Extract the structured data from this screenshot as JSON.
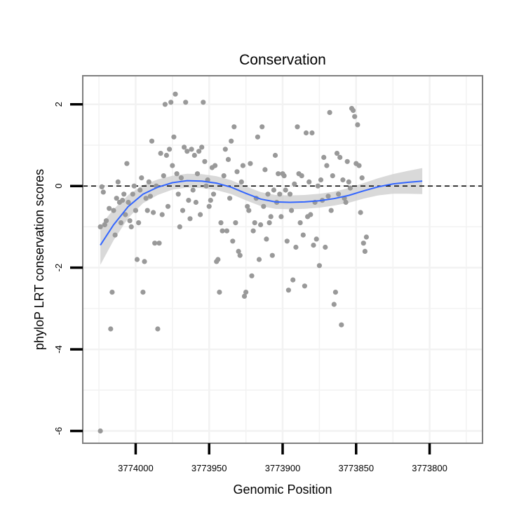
{
  "chart_data": {
    "type": "scatter",
    "title": "Conservation",
    "xlabel": "Genomic Position",
    "ylabel": "phyloP LRT conservation scores",
    "x_axis_reversed": true,
    "xlim": [
      3774036,
      3773764
    ],
    "ylim": [
      -6.3,
      2.7
    ],
    "x_ticks": [
      3774000,
      3773950,
      3773900,
      3773850,
      3773800
    ],
    "x_tick_labels": [
      "3774000",
      "3773950",
      "3773900",
      "3773850",
      "3773800"
    ],
    "y_ticks": [
      -6,
      -4,
      -2,
      0,
      2
    ],
    "y_tick_labels": [
      "-6",
      "-4",
      "-2",
      "0",
      "2"
    ],
    "y_tick_label_rotation": "vertical",
    "grid": true,
    "reference_line": {
      "y": 0,
      "style": "dashed",
      "color": "#000000"
    },
    "colors": {
      "points": "#999999",
      "smooth_line": "#3366ff",
      "confidence_band": "#cccccc",
      "panel_border": "#7f7f7f",
      "grid": "#f2f2f2"
    },
    "points": [
      {
        "x": 3774024,
        "y": -1.0
      },
      {
        "x": 3774023,
        "y": -0.02
      },
      {
        "x": 3774022,
        "y": -0.15
      },
      {
        "x": 3774021,
        "y": -0.95
      },
      {
        "x": 3774020,
        "y": -0.85
      },
      {
        "x": 3774024,
        "y": -6.0
      },
      {
        "x": 3774018,
        "y": -0.55
      },
      {
        "x": 3774017,
        "y": -3.5
      },
      {
        "x": 3774016,
        "y": -2.6
      },
      {
        "x": 3774015,
        "y": -0.6
      },
      {
        "x": 3774014,
        "y": -1.2
      },
      {
        "x": 3774013,
        "y": -0.3
      },
      {
        "x": 3774012,
        "y": 0.1
      },
      {
        "x": 3774011,
        "y": -0.4
      },
      {
        "x": 3774010,
        "y": -0.9
      },
      {
        "x": 3774009,
        "y": -0.35
      },
      {
        "x": 3774008,
        "y": -0.2
      },
      {
        "x": 3774007,
        "y": -0.7
      },
      {
        "x": 3774006,
        "y": 0.55
      },
      {
        "x": 3774005,
        "y": -0.4
      },
      {
        "x": 3774004,
        "y": -0.85
      },
      {
        "x": 3774003,
        "y": -1.0
      },
      {
        "x": 3774002,
        "y": -0.2
      },
      {
        "x": 3774001,
        "y": 0.0
      },
      {
        "x": 3774000,
        "y": -0.6
      },
      {
        "x": 3773999,
        "y": -1.8
      },
      {
        "x": 3773998,
        "y": -0.9
      },
      {
        "x": 3773997,
        "y": -0.1
      },
      {
        "x": 3773996,
        "y": 0.2
      },
      {
        "x": 3773995,
        "y": -2.6
      },
      {
        "x": 3773994,
        "y": -1.85
      },
      {
        "x": 3773993,
        "y": -0.3
      },
      {
        "x": 3773992,
        "y": -0.6
      },
      {
        "x": 3773991,
        "y": 0.1
      },
      {
        "x": 3773990,
        "y": -0.25
      },
      {
        "x": 3773989,
        "y": 1.1
      },
      {
        "x": 3773988,
        "y": -0.65
      },
      {
        "x": 3773987,
        "y": -1.4
      },
      {
        "x": 3773986,
        "y": 0.0
      },
      {
        "x": 3773985,
        "y": -3.5
      },
      {
        "x": 3773984,
        "y": -1.4
      },
      {
        "x": 3773983,
        "y": 0.8
      },
      {
        "x": 3773982,
        "y": -0.7
      },
      {
        "x": 3773981,
        "y": 0.25
      },
      {
        "x": 3773980,
        "y": 2.0
      },
      {
        "x": 3773979,
        "y": 0.75
      },
      {
        "x": 3773978,
        "y": -0.5
      },
      {
        "x": 3773977,
        "y": 0.9
      },
      {
        "x": 3773976,
        "y": 2.05
      },
      {
        "x": 3773975,
        "y": 0.5
      },
      {
        "x": 3773974,
        "y": 1.2
      },
      {
        "x": 3773973,
        "y": 2.25
      },
      {
        "x": 3773972,
        "y": 0.3
      },
      {
        "x": 3773971,
        "y": -0.2
      },
      {
        "x": 3773970,
        "y": -1.0
      },
      {
        "x": 3773969,
        "y": 0.2
      },
      {
        "x": 3773968,
        "y": -0.6
      },
      {
        "x": 3773967,
        "y": 0.95
      },
      {
        "x": 3773966,
        "y": 2.05
      },
      {
        "x": 3773965,
        "y": 0.85
      },
      {
        "x": 3773964,
        "y": -0.35
      },
      {
        "x": 3773963,
        "y": -0.8
      },
      {
        "x": 3773962,
        "y": 0.9
      },
      {
        "x": 3773961,
        "y": -0.1
      },
      {
        "x": 3773960,
        "y": 0.75
      },
      {
        "x": 3773959,
        "y": -0.4
      },
      {
        "x": 3773958,
        "y": 0.3
      },
      {
        "x": 3773957,
        "y": 0.85
      },
      {
        "x": 3773956,
        "y": -0.7
      },
      {
        "x": 3773955,
        "y": 0.95
      },
      {
        "x": 3773954,
        "y": 2.05
      },
      {
        "x": 3773953,
        "y": 0.6
      },
      {
        "x": 3773952,
        "y": 0.0
      },
      {
        "x": 3773951,
        "y": 0.15
      },
      {
        "x": 3773950,
        "y": -0.5
      },
      {
        "x": 3773949,
        "y": -0.35
      },
      {
        "x": 3773948,
        "y": 0.45
      },
      {
        "x": 3773947,
        "y": -0.2
      },
      {
        "x": 3773946,
        "y": 0.5
      },
      {
        "x": 3773945,
        "y": -1.85
      },
      {
        "x": 3773944,
        "y": -1.8
      },
      {
        "x": 3773943,
        "y": -2.6
      },
      {
        "x": 3773942,
        "y": -0.9
      },
      {
        "x": 3773941,
        "y": -1.1
      },
      {
        "x": 3773940,
        "y": 0.25
      },
      {
        "x": 3773939,
        "y": 0.9
      },
      {
        "x": 3773938,
        "y": -1.1
      },
      {
        "x": 3773937,
        "y": 0.65
      },
      {
        "x": 3773936,
        "y": -0.3
      },
      {
        "x": 3773935,
        "y": 1.1
      },
      {
        "x": 3773934,
        "y": -1.35
      },
      {
        "x": 3773933,
        "y": 1.45
      },
      {
        "x": 3773932,
        "y": -0.9
      },
      {
        "x": 3773931,
        "y": 0.35
      },
      {
        "x": 3773930,
        "y": -1.6
      },
      {
        "x": 3773929,
        "y": -1.7
      },
      {
        "x": 3773928,
        "y": 0.1
      },
      {
        "x": 3773927,
        "y": 0.5
      },
      {
        "x": 3773926,
        "y": -2.7
      },
      {
        "x": 3773925,
        "y": -2.6
      },
      {
        "x": 3773924,
        "y": -0.5
      },
      {
        "x": 3773923,
        "y": -0.6
      },
      {
        "x": 3773922,
        "y": 0.55
      },
      {
        "x": 3773921,
        "y": -2.2
      },
      {
        "x": 3773920,
        "y": -1.1
      },
      {
        "x": 3773919,
        "y": -0.9
      },
      {
        "x": 3773918,
        "y": -0.3
      },
      {
        "x": 3773917,
        "y": 1.2
      },
      {
        "x": 3773916,
        "y": -1.8
      },
      {
        "x": 3773915,
        "y": -0.95
      },
      {
        "x": 3773914,
        "y": 1.45
      },
      {
        "x": 3773913,
        "y": -0.5
      },
      {
        "x": 3773912,
        "y": 0.4
      },
      {
        "x": 3773911,
        "y": -1.3
      },
      {
        "x": 3773910,
        "y": -0.2
      },
      {
        "x": 3773909,
        "y": -0.9
      },
      {
        "x": 3773908,
        "y": -0.75
      },
      {
        "x": 3773907,
        "y": -1.7
      },
      {
        "x": 3773906,
        "y": -0.1
      },
      {
        "x": 3773905,
        "y": 0.75
      },
      {
        "x": 3773904,
        "y": -0.4
      },
      {
        "x": 3773903,
        "y": 0.3
      },
      {
        "x": 3773902,
        "y": -0.2
      },
      {
        "x": 3773901,
        "y": -0.75
      },
      {
        "x": 3773900,
        "y": 0.3
      },
      {
        "x": 3773899,
        "y": 0.25
      },
      {
        "x": 3773898,
        "y": -0.1
      },
      {
        "x": 3773897,
        "y": -1.35
      },
      {
        "x": 3773896,
        "y": -2.55
      },
      {
        "x": 3773895,
        "y": -0.2
      },
      {
        "x": 3773894,
        "y": -0.6
      },
      {
        "x": 3773893,
        "y": -2.3
      },
      {
        "x": 3773892,
        "y": 0.05
      },
      {
        "x": 3773891,
        "y": -1.5
      },
      {
        "x": 3773890,
        "y": 1.45
      },
      {
        "x": 3773889,
        "y": 0.3
      },
      {
        "x": 3773888,
        "y": -0.9
      },
      {
        "x": 3773887,
        "y": 0.25
      },
      {
        "x": 3773886,
        "y": -1.2
      },
      {
        "x": 3773885,
        "y": -2.45
      },
      {
        "x": 3773884,
        "y": 1.3
      },
      {
        "x": 3773883,
        "y": -0.75
      },
      {
        "x": 3773882,
        "y": 0.1
      },
      {
        "x": 3773881,
        "y": -0.7
      },
      {
        "x": 3773880,
        "y": 1.3
      },
      {
        "x": 3773879,
        "y": -1.45
      },
      {
        "x": 3773878,
        "y": -0.4
      },
      {
        "x": 3773877,
        "y": -1.3
      },
      {
        "x": 3773876,
        "y": 0.0
      },
      {
        "x": 3773875,
        "y": -1.95
      },
      {
        "x": 3773874,
        "y": 0.15
      },
      {
        "x": 3773873,
        "y": -0.35
      },
      {
        "x": 3773872,
        "y": 0.7
      },
      {
        "x": 3773871,
        "y": -1.5
      },
      {
        "x": 3773870,
        "y": 0.5
      },
      {
        "x": 3773869,
        "y": -0.25
      },
      {
        "x": 3773868,
        "y": 1.8
      },
      {
        "x": 3773867,
        "y": -0.6
      },
      {
        "x": 3773866,
        "y": 0.25
      },
      {
        "x": 3773865,
        "y": -2.9
      },
      {
        "x": 3773864,
        "y": -2.6
      },
      {
        "x": 3773863,
        "y": 0.8
      },
      {
        "x": 3773862,
        "y": -0.2
      },
      {
        "x": 3773861,
        "y": 0.7
      },
      {
        "x": 3773860,
        "y": -3.4
      },
      {
        "x": 3773859,
        "y": 0.15
      },
      {
        "x": 3773858,
        "y": -0.3
      },
      {
        "x": 3773857,
        "y": -0.4
      },
      {
        "x": 3773856,
        "y": 0.6
      },
      {
        "x": 3773855,
        "y": 0.1
      },
      {
        "x": 3773854,
        "y": -0.05
      },
      {
        "x": 3773853,
        "y": 1.9
      },
      {
        "x": 3773852,
        "y": 1.85
      },
      {
        "x": 3773851,
        "y": 1.7
      },
      {
        "x": 3773850,
        "y": 0.55
      },
      {
        "x": 3773849,
        "y": 1.5
      },
      {
        "x": 3773848,
        "y": 0.5
      },
      {
        "x": 3773847,
        "y": -0.65
      },
      {
        "x": 3773846,
        "y": 0.2
      },
      {
        "x": 3773845,
        "y": -1.4
      },
      {
        "x": 3773844,
        "y": -1.6
      },
      {
        "x": 3773843,
        "y": -1.25
      }
    ],
    "smooth": [
      {
        "x": 3774024,
        "y": -1.45
      },
      {
        "x": 3774015,
        "y": -0.95
      },
      {
        "x": 3774005,
        "y": -0.5
      },
      {
        "x": 3773995,
        "y": -0.2
      },
      {
        "x": 3773985,
        "y": -0.03
      },
      {
        "x": 3773975,
        "y": 0.08
      },
      {
        "x": 3773965,
        "y": 0.13
      },
      {
        "x": 3773955,
        "y": 0.12
      },
      {
        "x": 3773945,
        "y": 0.07
      },
      {
        "x": 3773935,
        "y": -0.03
      },
      {
        "x": 3773925,
        "y": -0.18
      },
      {
        "x": 3773915,
        "y": -0.32
      },
      {
        "x": 3773905,
        "y": -0.39
      },
      {
        "x": 3773895,
        "y": -0.4
      },
      {
        "x": 3773885,
        "y": -0.39
      },
      {
        "x": 3773875,
        "y": -0.36
      },
      {
        "x": 3773865,
        "y": -0.31
      },
      {
        "x": 3773855,
        "y": -0.23
      },
      {
        "x": 3773845,
        "y": -0.12
      },
      {
        "x": 3773835,
        "y": -0.02
      },
      {
        "x": 3773825,
        "y": 0.05
      },
      {
        "x": 3773815,
        "y": 0.09
      },
      {
        "x": 3773805,
        "y": 0.12
      }
    ],
    "band_halfwidth": [
      0.48,
      0.38,
      0.28,
      0.22,
      0.19,
      0.17,
      0.17,
      0.17,
      0.17,
      0.17,
      0.17,
      0.17,
      0.17,
      0.17,
      0.17,
      0.17,
      0.17,
      0.18,
      0.19,
      0.21,
      0.24,
      0.28,
      0.32
    ]
  }
}
